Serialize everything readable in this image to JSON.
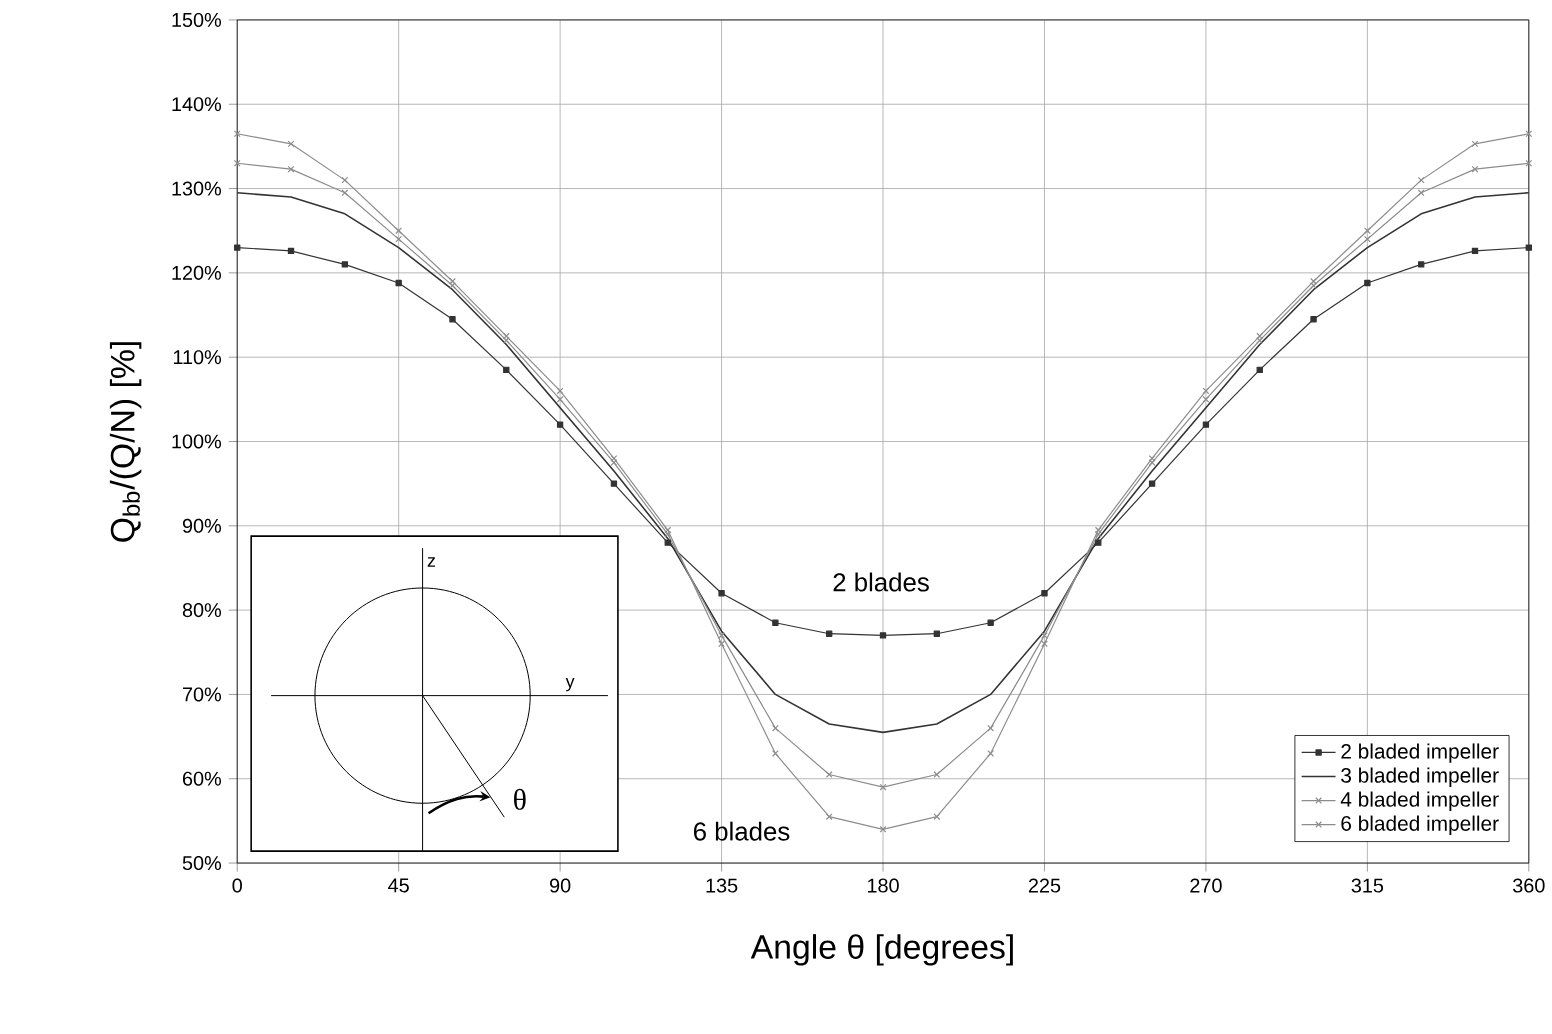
{
  "chart_data": {
    "type": "line",
    "xlabel": "Angle θ [degrees]",
    "ylabel": "Q$_{bb}$/(Q/N) [%]",
    "x": [
      0,
      15,
      30,
      45,
      60,
      75,
      90,
      105,
      120,
      135,
      150,
      165,
      180,
      195,
      210,
      225,
      240,
      255,
      270,
      285,
      300,
      315,
      330,
      345,
      360
    ],
    "series": [
      {
        "name": "2 bladed impeller",
        "color": "#333333",
        "marker": "square",
        "values": [
          123,
          122.6,
          121,
          118.8,
          114.5,
          108.5,
          102,
          95,
          88,
          82,
          78.5,
          77.2,
          77,
          77.2,
          78.5,
          82,
          88,
          95,
          102,
          108.5,
          114.5,
          118.8,
          121,
          122.6,
          123
        ]
      },
      {
        "name": "3 bladed impeller",
        "color": "#333333",
        "marker": "none",
        "values": [
          129.5,
          129,
          127,
          123,
          118,
          111.5,
          104,
          96.5,
          88.5,
          77.5,
          70,
          66.5,
          65.5,
          66.5,
          70,
          77.5,
          88.5,
          96.5,
          104,
          111.5,
          118,
          123,
          127,
          129,
          129.5
        ]
      },
      {
        "name": "4 bladed impeller",
        "color": "#8c8c8c",
        "marker": "cross",
        "values": [
          133,
          132.3,
          129.5,
          124,
          118.5,
          112,
          105,
          97.5,
          89,
          77,
          66,
          60.5,
          59,
          60.5,
          66,
          77,
          89,
          97.5,
          105,
          112,
          118.5,
          124,
          129.5,
          132.3,
          133
        ]
      },
      {
        "name": "6 bladed impeller",
        "color": "#8c8c8c",
        "marker": "cross",
        "values": [
          136.5,
          135.3,
          131,
          125,
          119,
          112.5,
          106,
          98,
          89.5,
          76,
          63,
          55.5,
          54,
          55.5,
          63,
          76,
          89.5,
          98,
          106,
          112.5,
          119,
          125,
          131,
          135.3,
          136.5
        ]
      }
    ],
    "xlim": [
      0,
      360
    ],
    "xticks": [
      0,
      45,
      90,
      135,
      180,
      225,
      270,
      315,
      360
    ],
    "ylim": [
      50,
      150
    ],
    "yticks": [
      {
        "value": 50,
        "label": "50%"
      },
      {
        "value": 60,
        "label": "60%"
      },
      {
        "value": 70,
        "label": "70%"
      },
      {
        "value": 80,
        "label": "80%"
      },
      {
        "value": 90,
        "label": "90%"
      },
      {
        "value": 100,
        "label": "100%"
      },
      {
        "value": 110,
        "label": "110%"
      },
      {
        "value": 120,
        "label": "120%"
      },
      {
        "value": 130,
        "label": "130%"
      },
      {
        "value": 140,
        "label": "140%"
      },
      {
        "value": 150,
        "label": "150%"
      }
    ],
    "grid": true,
    "legend": "bottom right",
    "annotations": [
      "2 blades",
      "6 blades",
      "z",
      "y",
      "θ"
    ]
  }
}
